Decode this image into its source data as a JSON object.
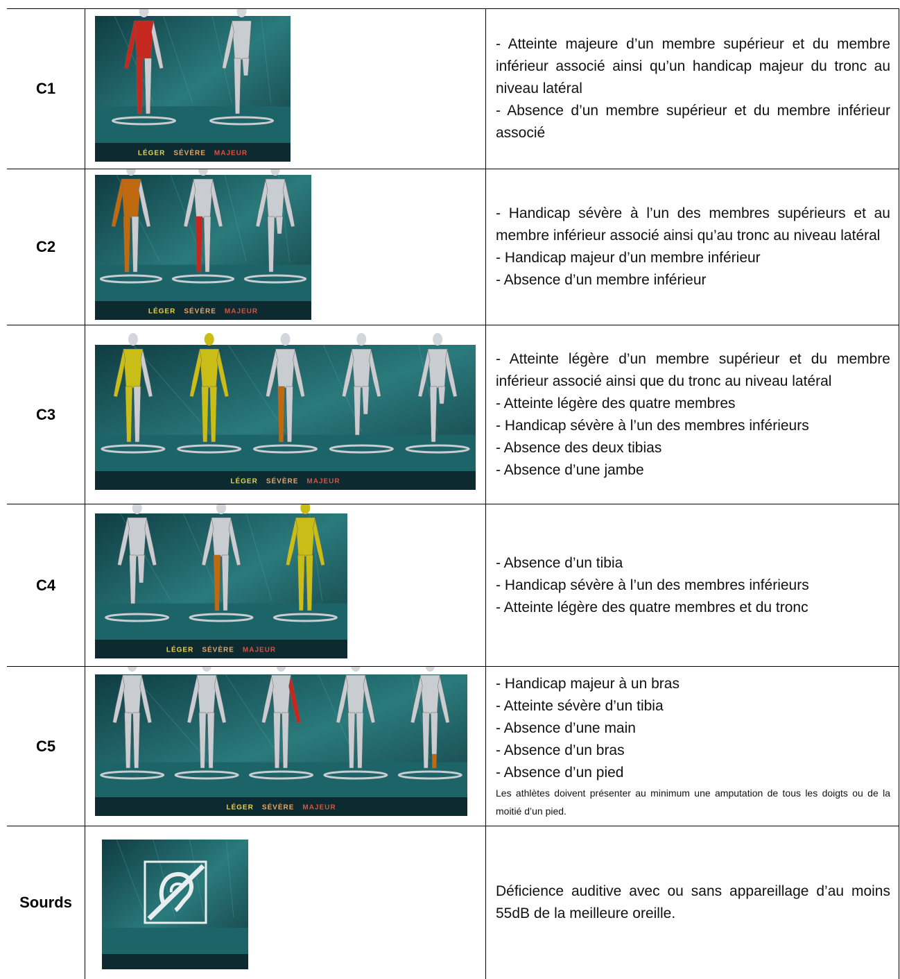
{
  "table": {
    "rows": [
      {
        "label": "C1",
        "legend": [
          "LÉGER",
          "SÉVÈRE",
          "MAJEUR"
        ],
        "lines": [
          "- Atteinte majeure d’un membre supérieur et du membre inférieur associé ainsi qu’un handicap majeur du tronc au niveau latéral",
          "- Absence d’un membre supérieur et du membre inférieur associé"
        ]
      },
      {
        "label": "C2",
        "legend": [
          "LÉGER",
          "SÉVÈRE",
          "MAJEUR"
        ],
        "lines": [
          "- Handicap sévère à l’un des membres supérieurs et au membre inférieur associé ainsi qu’au tronc au niveau latéral",
          "- Handicap majeur d’un membre inférieur",
          "- Absence d’un membre inférieur"
        ]
      },
      {
        "label": "C3",
        "legend": [
          "LÉGER",
          "SÉVÈRE",
          "MAJEUR"
        ],
        "lines": [
          "- Atteinte légère d’un membre supérieur et du membre inférieur associé ainsi que du tronc au niveau latéral",
          "- Atteinte légère des quatre membres",
          "- Handicap sévère à l’un des membres inférieurs",
          "- Absence des deux tibias",
          "- Absence d’une jambe"
        ]
      },
      {
        "label": "C4",
        "legend": [
          "LÉGER",
          "SÉVÈRE",
          "MAJEUR"
        ],
        "lines": [
          "- Absence d’un tibia",
          "- Handicap sévère à l’un des membres inférieurs",
          "- Atteinte légère des quatre membres et du tronc"
        ]
      },
      {
        "label": "C5",
        "legend": [
          "LÉGER",
          "SÉVÈRE",
          "MAJEUR"
        ],
        "lines": [
          "- Handicap majeur à un bras",
          "- Atteinte sévère d’un tibia",
          "- Absence d’une main",
          "- Absence d’un bras",
          "- Absence d’un pied"
        ],
        "note": "Les athlètes doivent présenter au minimum une amputation de tous les doigts ou de la moitié d’un pied."
      },
      {
        "label": "Sourds",
        "lines": [
          "Déficience auditive avec ou sans appareillage d’au moins 55dB de la meilleure oreille."
        ]
      }
    ]
  }
}
